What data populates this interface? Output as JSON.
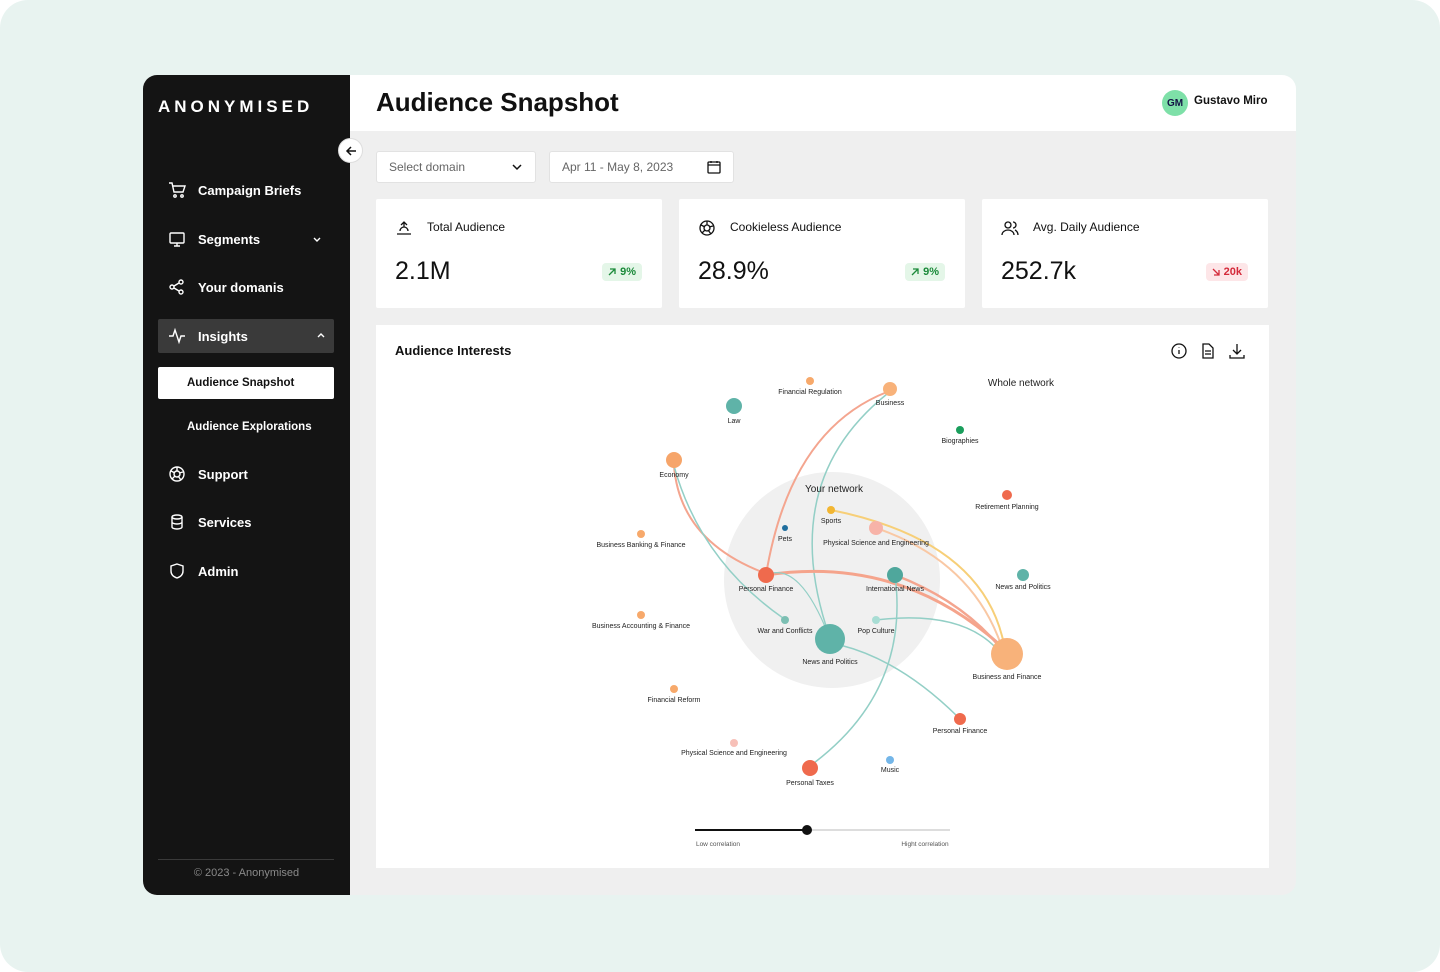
{
  "brand": "ANONYMISED",
  "sidebar": {
    "nav": [
      "Campaign Briefs",
      "Segments",
      "Your domanis",
      "Insights",
      "Audience Snapshot",
      "Audience Explorations",
      "Support",
      "Services",
      "Admin"
    ],
    "footer": "© 2023 - Anonymised"
  },
  "header": {
    "title": "Audience Snapshot",
    "user": {
      "initials": "GM",
      "name": "Gustavo Miro"
    }
  },
  "filters": {
    "domain": "Select domain",
    "date": "Apr 11 - May 8, 2023"
  },
  "kpis": [
    {
      "label": "Total Audience",
      "value": "2.1M",
      "change": "9%",
      "trend": "up"
    },
    {
      "label": "Cookieless Audience",
      "value": "28.9%",
      "change": "9%",
      "trend": "up"
    },
    {
      "label": "Avg. Daily Audience",
      "value": "252.7k",
      "change": "20k",
      "trend": "down"
    }
  ],
  "interests": {
    "title": "Audience Interests",
    "whole_network": "Whole network",
    "your_network": "Your network",
    "nodes": [
      "Financial Regulation",
      "Business",
      "Law",
      "Biographies",
      "Economy",
      "Retirement Planning",
      "Sports",
      "Physical Science and Engineering",
      "Pets",
      "Business Banking & Finance",
      "Personal Finance",
      "International News",
      "News and Politics",
      "Business Accounting & Finance",
      "War and Conflicts",
      "Pop Culture",
      "News and Politics",
      "Business and Finance",
      "Financial Reform",
      "Personal Finance",
      "Physical Science and Engineering",
      "Music",
      "Personal Taxes"
    ],
    "slider": {
      "low": "Low correlation",
      "high": "Hight correlation"
    }
  }
}
